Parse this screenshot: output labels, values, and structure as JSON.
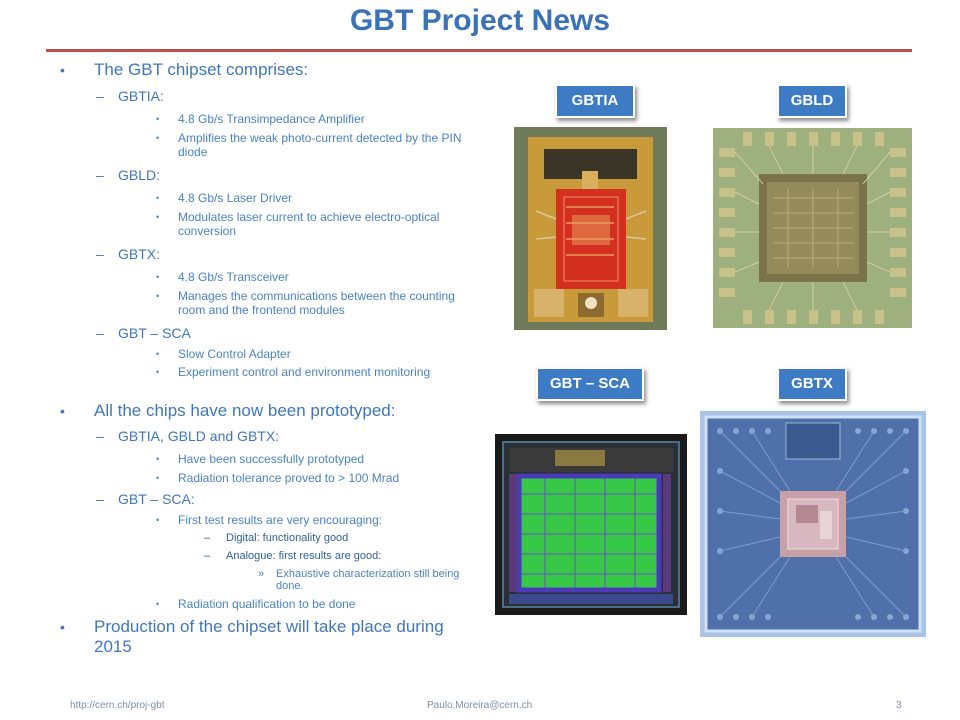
{
  "slide": {
    "title": "GBT Project News",
    "page_number": "3"
  },
  "bullets": {
    "b1": "The GBT chipset comprises:",
    "gbtia": "GBTIA:",
    "gbtia_1": "4.8 Gb/s Transimpedance Amplifier",
    "gbtia_2": "Amplifies the weak photo-current detected by the PIN diode",
    "gbld": "GBLD:",
    "gbld_1": "4.8 Gb/s Laser Driver",
    "gbld_2": "Modulates laser current to achieve electro-optical conversion",
    "gbtx": "GBTX:",
    "gbtx_1": "4.8 Gb/s Transceiver",
    "gbtx_2": "Manages the communications between the counting room and the frontend modules",
    "sca": "GBT – SCA",
    "sca_1": "Slow Control Adapter",
    "sca_2": "Experiment control and environment monitoring",
    "b2": "All the chips have now been prototyped:",
    "b2_a": "GBTIA, GBLD and GBTX:",
    "b2_a1": "Have been successfully prototyped",
    "b2_a2": "Radiation tolerance proved to > 100 Mrad",
    "b2_b": "GBT – SCA:",
    "b2_b1": "First test results are very encouraging:",
    "b2_b1_a": "Digital: functionality good",
    "b2_b1_b": "Analogue: first results are good:",
    "b2_b1_b1": "Exhaustive characterization still being done.",
    "b2_b2": "Radiation qualification to be done",
    "b3": "Production of the chipset will take place during 2015"
  },
  "labels": {
    "gbtia": "GBTIA",
    "gbld": "GBLD",
    "sca": "GBT – SCA",
    "gbtx": "GBTX"
  },
  "footer": {
    "url": "http://cern.ch/proj-gbt",
    "email": "Paulo.Moreira@cern.ch"
  },
  "colors": {
    "title": "#3a72b8",
    "rule": "#c0504d",
    "tag_bg": "#3d7bc5"
  }
}
